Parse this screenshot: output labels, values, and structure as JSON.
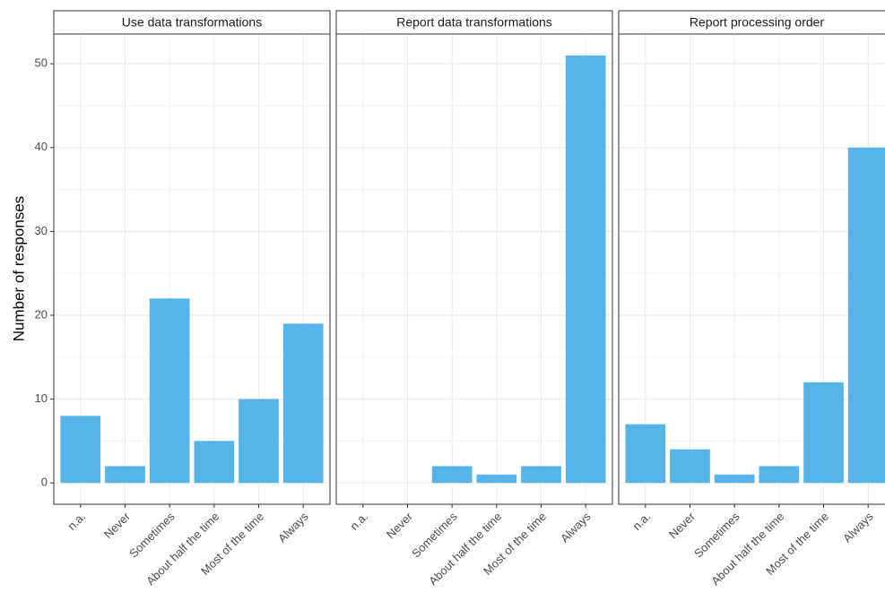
{
  "chart_data": [
    {
      "type": "bar",
      "title": "Use data transformations",
      "y_label": "Number of responses",
      "categories": [
        "n.a.",
        "Never",
        "Sometimes",
        "About half the time",
        "Most of the time",
        "Always"
      ],
      "values": [
        8,
        2,
        22,
        5,
        10,
        19
      ],
      "color": "#56b4e9",
      "ylim": [
        -2.55,
        53.55
      ],
      "yticks": [
        0,
        10,
        20,
        30,
        40,
        50
      ],
      "grid": true
    },
    {
      "type": "bar",
      "title": "Report data transformations",
      "categories": [
        "n.a.",
        "Never",
        "Sometimes",
        "About half the time",
        "Most of the time",
        "Always"
      ],
      "values": [
        0,
        0,
        2,
        1,
        2,
        51
      ],
      "color": "#56b4e9",
      "ylim": [
        -2.55,
        53.55
      ],
      "yticks": [
        0,
        10,
        20,
        30,
        40,
        50
      ],
      "grid": true
    },
    {
      "type": "bar",
      "title": "Report processing order",
      "categories": [
        "n.a.",
        "Never",
        "Sometimes",
        "About half the time",
        "Most of the time",
        "Always"
      ],
      "values": [
        7,
        4,
        1,
        2,
        12,
        40
      ],
      "color": "#56b4e9",
      "ylim": [
        -2.55,
        53.55
      ],
      "yticks": [
        0,
        10,
        20,
        30,
        40,
        50
      ],
      "grid": true
    }
  ]
}
